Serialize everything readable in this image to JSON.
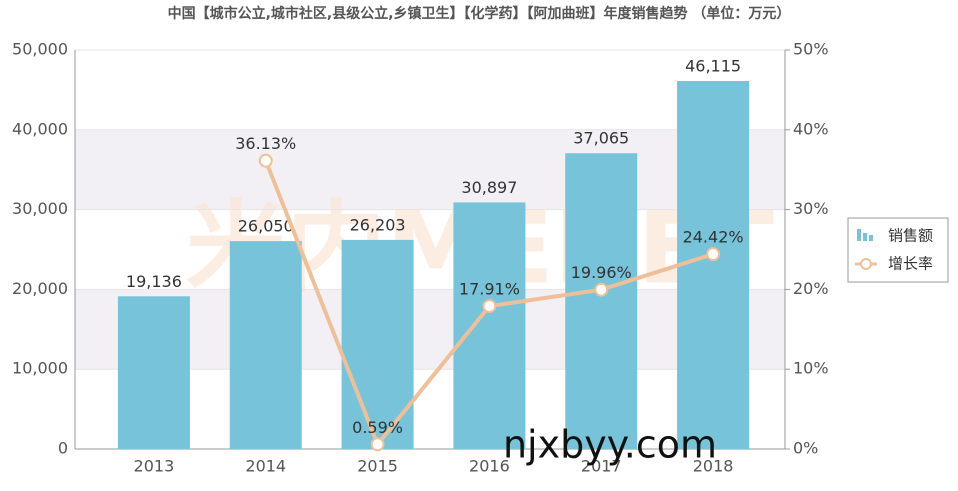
{
  "chart_data": {
    "type": "bar-line",
    "title": "中国【城市公立,城市社区,县级公立,乡镇卫生】【化学药】【阿加曲班】年度销售趋势 （单位：万元）",
    "watermarks": [
      "米内MENET",
      "njxbyy.com"
    ],
    "categories": [
      "2013",
      "2014",
      "2015",
      "2016",
      "2017",
      "2018"
    ],
    "series": [
      {
        "name": "销售额",
        "type": "bar",
        "color": "#76c3da",
        "values": [
          19136,
          26050,
          26203,
          30897,
          37065,
          46115
        ],
        "value_labels": [
          "19,136",
          "26,050",
          "26,203",
          "30,897",
          "37,065",
          "46,115"
        ]
      },
      {
        "name": "增长率",
        "type": "line",
        "axis": "y2",
        "color": "#efbf97",
        "values": [
          null,
          36.13,
          0.59,
          17.91,
          19.96,
          24.42
        ],
        "value_labels": [
          null,
          "36.13%",
          "0.59%",
          "17.91%",
          "19.96%",
          "24.42%"
        ]
      }
    ],
    "ylim": [
      0,
      50000
    ],
    "yticks": [
      0,
      {
        "value": 10000,
        "label": "10,000"
      },
      {
        "value": 20000,
        "label": "20,000"
      },
      {
        "value": 30000,
        "label": "30,000"
      },
      {
        "value": 40000,
        "label": "40,000"
      },
      {
        "value": 50000,
        "label": "50,000"
      }
    ],
    "y2lim": [
      0,
      50
    ],
    "y2ticks": [
      {
        "value": 0,
        "label": "0%"
      },
      {
        "value": 10,
        "label": "10%"
      },
      {
        "value": 20,
        "label": "20%"
      },
      {
        "value": 30,
        "label": "30%"
      },
      {
        "value": 40,
        "label": "40%"
      },
      {
        "value": 50,
        "label": "50%"
      }
    ],
    "grid": true,
    "legend": "right"
  }
}
